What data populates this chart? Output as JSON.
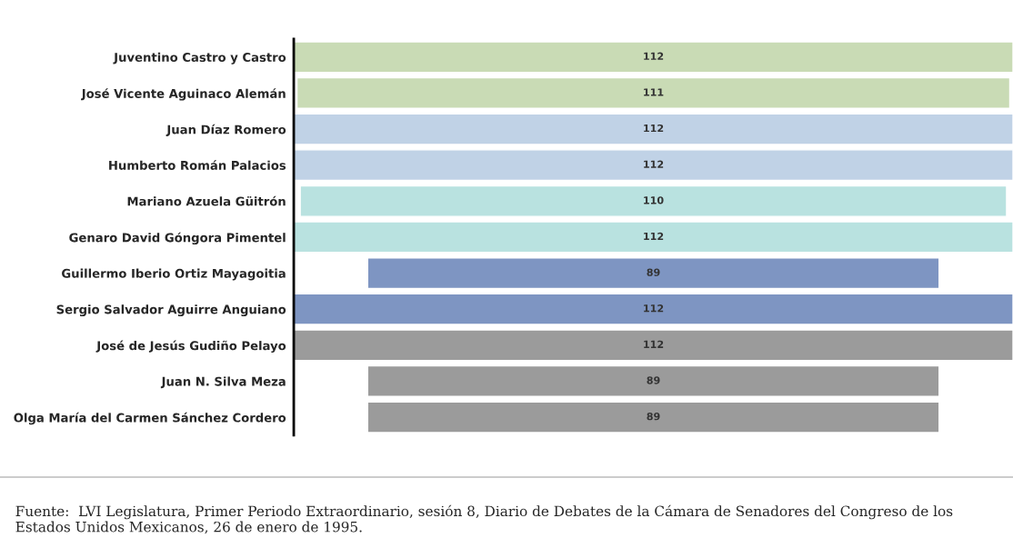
{
  "chart_data": {
    "type": "other",
    "categories": [
      "Juventino Castro y Castro",
      "José Vicente Aguinaco Alemán",
      "Juan Díaz Romero",
      "Humberto Román Palacios",
      "Mariano Azuela Güitrón",
      "Genaro David Góngora Pimentel",
      "Guillermo Iberio Ortiz Mayagoitia",
      "Sergio Salvador Aguirre Anguiano",
      "José de Jesús Gudiño Pelayo",
      "Juan N. Silva Meza",
      "Olga María del Carmen Sánchez Cordero"
    ],
    "values": [
      112,
      111,
      112,
      112,
      110,
      112,
      89,
      112,
      112,
      89,
      89
    ],
    "colors": [
      "#c9dbb5",
      "#c9dbb5",
      "#c0d2e6",
      "#c0d2e6",
      "#b9e2e0",
      "#b9e2e0",
      "#7e95c2",
      "#7e95c2",
      "#9b9b9b",
      "#9b9b9b",
      "#9b9b9b"
    ],
    "data_labels": true,
    "annotations": [
      "Fuente:  LVI Legislatura, Primer Periodo Extraordinario, sesión 8, Diario de Debates de la Cámara de Senadores del Congreso de los Estados Unidos Mexicanos, 26 de enero de 1995."
    ]
  }
}
